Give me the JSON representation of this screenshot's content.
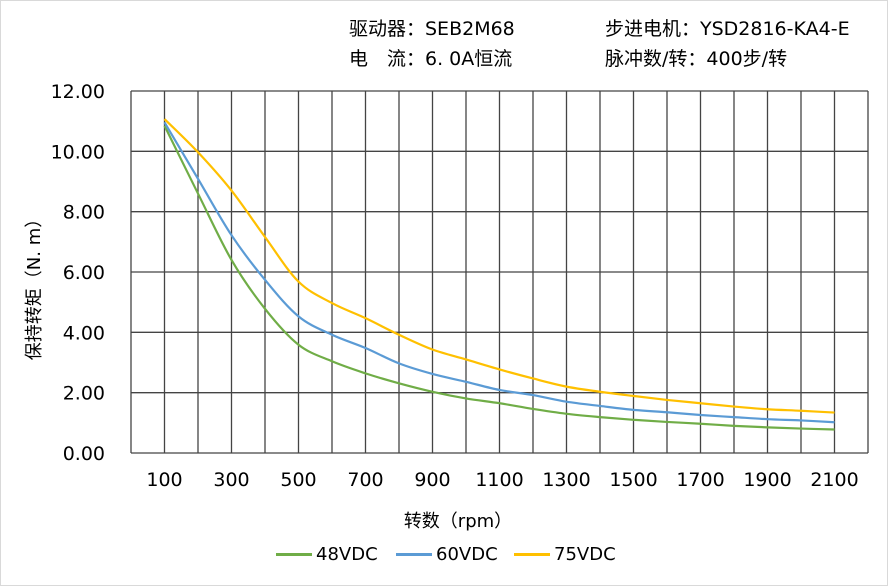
{
  "header": {
    "driver": "驱动器：SEB2M68",
    "motor": "步进电机：YSD2816-KA4-E",
    "current": "电　流：6. 0A恒流",
    "pulses": "脉冲数/转：400步/转"
  },
  "chart_data": {
    "type": "line",
    "title": "",
    "xlabel": "转数（rpm）",
    "ylabel": "保持转矩（N. m）",
    "xlim": [
      0,
      2200
    ],
    "ylim": [
      0,
      12
    ],
    "grid": true,
    "legend": "bottom",
    "x_ticks": [
      "100",
      "300",
      "500",
      "700",
      "900",
      "1100",
      "1300",
      "1500",
      "1700",
      "1900",
      "2100"
    ],
    "y_ticks": [
      "0.00",
      "2.00",
      "4.00",
      "6.00",
      "8.00",
      "10.00",
      "12.00"
    ],
    "x": [
      100,
      200,
      300,
      400,
      500,
      600,
      700,
      800,
      900,
      1000,
      1100,
      1200,
      1300,
      1400,
      1500,
      1600,
      1700,
      1800,
      1900,
      2000,
      2100
    ],
    "series": [
      {
        "name": "48VDC",
        "color": "#70ad47",
        "values": [
          10.85,
          8.6,
          6.4,
          4.78,
          3.59,
          3.04,
          2.64,
          2.31,
          2.03,
          1.81,
          1.65,
          1.46,
          1.3,
          1.19,
          1.1,
          1.03,
          0.97,
          0.9,
          0.85,
          0.81,
          0.78
        ]
      },
      {
        "name": "60VDC",
        "color": "#5b9bd5",
        "values": [
          10.96,
          9.09,
          7.22,
          5.74,
          4.53,
          3.92,
          3.48,
          2.97,
          2.62,
          2.36,
          2.09,
          1.92,
          1.7,
          1.56,
          1.43,
          1.35,
          1.26,
          1.19,
          1.12,
          1.08,
          1.02
        ]
      },
      {
        "name": "75VDC",
        "color": "#ffc000",
        "values": [
          11.07,
          9.97,
          8.7,
          7.16,
          5.68,
          4.97,
          4.47,
          3.92,
          3.43,
          3.1,
          2.77,
          2.47,
          2.2,
          2.03,
          1.89,
          1.76,
          1.65,
          1.54,
          1.45,
          1.4,
          1.34
        ]
      }
    ]
  }
}
